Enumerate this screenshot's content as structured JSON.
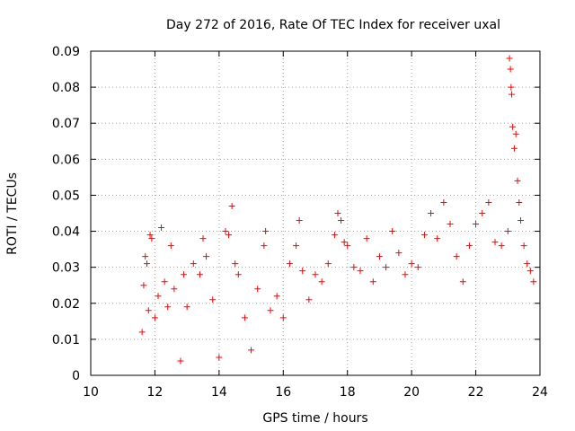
{
  "chart_data": {
    "type": "scatter",
    "title": "Day 272 of 2016, Rate Of TEC Index for receiver uxal",
    "xlabel": "GPS time / hours",
    "ylabel": "ROTI / TECUs",
    "xlim": [
      10,
      24
    ],
    "ylim": [
      0,
      0.09
    ],
    "grid": true,
    "x_ticks": [
      10,
      12,
      14,
      16,
      18,
      20,
      22,
      24
    ],
    "x_tick_labels": [
      "10",
      "12",
      "14",
      "16",
      "18",
      "20",
      "22",
      "24"
    ],
    "y_ticks": [
      0,
      0.01,
      0.02,
      0.03,
      0.04,
      0.05,
      0.06,
      0.07,
      0.08,
      0.09
    ],
    "y_tick_labels": [
      "0",
      "0.01",
      "0.02",
      "0.03",
      "0.04",
      "0.05",
      "0.06",
      "0.07",
      "0.08",
      "0.09"
    ],
    "marker": "plus",
    "color": "#ff0000",
    "series": [
      {
        "name": "ROTI",
        "points": [
          [
            11.6,
            0.012
          ],
          [
            11.65,
            0.025
          ],
          [
            11.7,
            0.033
          ],
          [
            11.75,
            0.031
          ],
          [
            11.8,
            0.018
          ],
          [
            11.85,
            0.039
          ],
          [
            11.9,
            0.038
          ],
          [
            12.0,
            0.016
          ],
          [
            12.1,
            0.022
          ],
          [
            12.2,
            0.041
          ],
          [
            12.3,
            0.026
          ],
          [
            12.4,
            0.019
          ],
          [
            12.5,
            0.036
          ],
          [
            12.6,
            0.024
          ],
          [
            12.8,
            0.004
          ],
          [
            12.9,
            0.028
          ],
          [
            13.0,
            0.019
          ],
          [
            13.2,
            0.031
          ],
          [
            13.4,
            0.028
          ],
          [
            13.5,
            0.038
          ],
          [
            13.6,
            0.033
          ],
          [
            13.8,
            0.021
          ],
          [
            14.0,
            0.005
          ],
          [
            14.2,
            0.04
          ],
          [
            14.3,
            0.039
          ],
          [
            14.4,
            0.047
          ],
          [
            14.5,
            0.031
          ],
          [
            14.6,
            0.028
          ],
          [
            14.8,
            0.016
          ],
          [
            15.0,
            0.007
          ],
          [
            15.2,
            0.024
          ],
          [
            15.4,
            0.036
          ],
          [
            15.45,
            0.04
          ],
          [
            15.6,
            0.018
          ],
          [
            15.8,
            0.022
          ],
          [
            16.0,
            0.016
          ],
          [
            16.2,
            0.031
          ],
          [
            16.4,
            0.036
          ],
          [
            16.5,
            0.043
          ],
          [
            16.6,
            0.029
          ],
          [
            16.8,
            0.021
          ],
          [
            17.0,
            0.028
          ],
          [
            17.2,
            0.026
          ],
          [
            17.4,
            0.031
          ],
          [
            17.6,
            0.039
          ],
          [
            17.7,
            0.045
          ],
          [
            17.8,
            0.043
          ],
          [
            17.9,
            0.037
          ],
          [
            18.0,
            0.036
          ],
          [
            18.2,
            0.03
          ],
          [
            18.4,
            0.029
          ],
          [
            18.6,
            0.038
          ],
          [
            18.8,
            0.026
          ],
          [
            19.0,
            0.033
          ],
          [
            19.2,
            0.03
          ],
          [
            19.4,
            0.04
          ],
          [
            19.6,
            0.034
          ],
          [
            19.8,
            0.028
          ],
          [
            20.0,
            0.031
          ],
          [
            20.2,
            0.03
          ],
          [
            20.4,
            0.039
          ],
          [
            20.6,
            0.045
          ],
          [
            20.8,
            0.038
          ],
          [
            21.0,
            0.048
          ],
          [
            21.2,
            0.042
          ],
          [
            21.4,
            0.033
          ],
          [
            21.6,
            0.026
          ],
          [
            21.8,
            0.036
          ],
          [
            22.0,
            0.042
          ],
          [
            22.2,
            0.045
          ],
          [
            22.4,
            0.048
          ],
          [
            22.6,
            0.037
          ],
          [
            22.8,
            0.036
          ],
          [
            23.0,
            0.04
          ],
          [
            23.05,
            0.088
          ],
          [
            23.08,
            0.085
          ],
          [
            23.1,
            0.08
          ],
          [
            23.12,
            0.078
          ],
          [
            23.15,
            0.069
          ],
          [
            23.2,
            0.063
          ],
          [
            23.25,
            0.067
          ],
          [
            23.3,
            0.054
          ],
          [
            23.35,
            0.048
          ],
          [
            23.4,
            0.043
          ],
          [
            23.5,
            0.036
          ],
          [
            23.6,
            0.031
          ],
          [
            23.7,
            0.029
          ],
          [
            23.8,
            0.026
          ]
        ]
      }
    ]
  }
}
